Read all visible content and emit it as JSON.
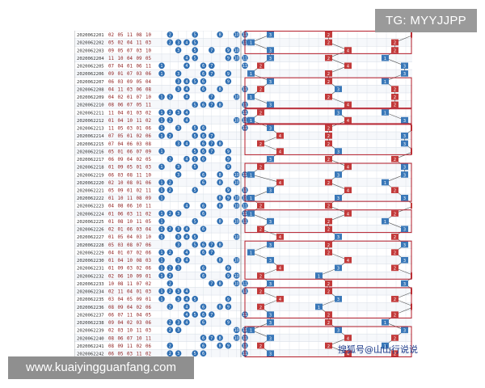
{
  "overlay": {
    "tg_label": "TG: MYYJJPP",
    "site_url": "www.kuaiyingguanfang.com",
    "watermark": "搜狐号@山山行说说"
  },
  "colors": {
    "draw_text": "#8b1a1a",
    "ball_blue": "#2f6fb3",
    "cell_red": "#c23a3a",
    "cell_blue": "#3a78b8",
    "box_line": "#b51e2a",
    "grid": "#d7dde6"
  },
  "draws": [
    {
      "issue": "2020062201",
      "nums": [
        "02",
        "05",
        "11",
        "08",
        "10"
      ]
    },
    {
      "issue": "2020062202",
      "nums": [
        "05",
        "02",
        "04",
        "11",
        "03"
      ]
    },
    {
      "issue": "2020062203",
      "nums": [
        "09",
        "05",
        "07",
        "03",
        "10"
      ]
    },
    {
      "issue": "2020062204",
      "nums": [
        "11",
        "10",
        "04",
        "09",
        "05"
      ]
    },
    {
      "issue": "2020062205",
      "nums": [
        "07",
        "04",
        "01",
        "06",
        "11"
      ]
    },
    {
      "issue": "2020062206",
      "nums": [
        "09",
        "01",
        "07",
        "03",
        "06"
      ]
    },
    {
      "issue": "2020062207",
      "nums": [
        "06",
        "03",
        "09",
        "05",
        "04"
      ]
    },
    {
      "issue": "2020062208",
      "nums": [
        "04",
        "11",
        "03",
        "06",
        "08"
      ]
    },
    {
      "issue": "2020062209",
      "nums": [
        "04",
        "02",
        "01",
        "07",
        "10"
      ]
    },
    {
      "issue": "2020062210",
      "nums": [
        "08",
        "06",
        "07",
        "05",
        "11"
      ]
    },
    {
      "issue": "2020062211",
      "nums": [
        "11",
        "04",
        "01",
        "03",
        "02"
      ]
    },
    {
      "issue": "2020062212",
      "nums": [
        "01",
        "04",
        "10",
        "11",
        "02"
      ]
    },
    {
      "issue": "2020062213",
      "nums": [
        "11",
        "05",
        "03",
        "01",
        "06"
      ]
    },
    {
      "issue": "2020062214",
      "nums": [
        "07",
        "05",
        "01",
        "02",
        "06"
      ]
    },
    {
      "issue": "2020062215",
      "nums": [
        "07",
        "04",
        "06",
        "03",
        "08"
      ]
    },
    {
      "issue": "2020062216",
      "nums": [
        "05",
        "01",
        "06",
        "07",
        "09"
      ]
    },
    {
      "issue": "2020062217",
      "nums": [
        "06",
        "09",
        "04",
        "02",
        "05"
      ]
    },
    {
      "issue": "2020062218",
      "nums": [
        "01",
        "09",
        "05",
        "01",
        "03"
      ]
    },
    {
      "issue": "2020062219",
      "nums": [
        "06",
        "03",
        "08",
        "11",
        "10"
      ]
    },
    {
      "issue": "2020062220",
      "nums": [
        "02",
        "10",
        "08",
        "01",
        "06"
      ]
    },
    {
      "issue": "2020062221",
      "nums": [
        "05",
        "09",
        "01",
        "02",
        "11"
      ]
    },
    {
      "issue": "2020062222",
      "nums": [
        "01",
        "10",
        "11",
        "08",
        "09"
      ]
    },
    {
      "issue": "2020062223",
      "nums": [
        "04",
        "08",
        "06",
        "10",
        "11"
      ]
    },
    {
      "issue": "2020062224",
      "nums": [
        "01",
        "06",
        "03",
        "11",
        "02"
      ]
    },
    {
      "issue": "2020062225",
      "nums": [
        "01",
        "08",
        "10",
        "11",
        "05"
      ]
    },
    {
      "issue": "2020062226",
      "nums": [
        "02",
        "01",
        "06",
        "03",
        "04"
      ]
    },
    {
      "issue": "2020062227",
      "nums": [
        "01",
        "05",
        "04",
        "03",
        "10"
      ]
    },
    {
      "issue": "2020062228",
      "nums": [
        "05",
        "03",
        "08",
        "07",
        "06"
      ]
    },
    {
      "issue": "2020062229",
      "nums": [
        "04",
        "01",
        "07",
        "02",
        "06"
      ]
    },
    {
      "issue": "2020062230",
      "nums": [
        "01",
        "04",
        "10",
        "08",
        "03"
      ]
    },
    {
      "issue": "2020062231",
      "nums": [
        "01",
        "09",
        "03",
        "02",
        "06"
      ]
    },
    {
      "issue": "2020062232",
      "nums": [
        "02",
        "06",
        "10",
        "09",
        "01"
      ]
    },
    {
      "issue": "2020062233",
      "nums": [
        "10",
        "08",
        "11",
        "07",
        "02"
      ]
    },
    {
      "issue": "2020062234",
      "nums": [
        "02",
        "11",
        "04",
        "01",
        "03"
      ]
    },
    {
      "issue": "2020062235",
      "nums": [
        "03",
        "04",
        "05",
        "09",
        "01"
      ]
    },
    {
      "issue": "2020062236",
      "nums": [
        "08",
        "09",
        "04",
        "02",
        "06"
      ]
    },
    {
      "issue": "2020062237",
      "nums": [
        "06",
        "07",
        "11",
        "04",
        "05"
      ]
    },
    {
      "issue": "2020062238",
      "nums": [
        "09",
        "04",
        "02",
        "03",
        "06"
      ]
    },
    {
      "issue": "2020062239",
      "nums": [
        "02",
        "03",
        "10",
        "11",
        "03"
      ]
    },
    {
      "issue": "2020062240",
      "nums": [
        "08",
        "06",
        "07",
        "10",
        "11"
      ]
    },
    {
      "issue": "2020062241",
      "nums": [
        "08",
        "09",
        "11",
        "02",
        "06"
      ]
    },
    {
      "issue": "2020062242",
      "nums": [
        "06",
        "05",
        "03",
        "11",
        "02"
      ]
    }
  ],
  "section_values": [
    [
      "3",
      "2",
      "4"
    ],
    [
      "1",
      "2",
      "2"
    ],
    [
      "3",
      "4",
      "2"
    ],
    [
      "3",
      "2",
      "1"
    ],
    [
      "2",
      "4",
      "3"
    ],
    [
      "1",
      "2",
      "3"
    ],
    [
      "3",
      "2",
      "1"
    ],
    [
      "2",
      "3",
      "2"
    ],
    [
      "1",
      "2",
      "2"
    ],
    [
      "3",
      "4",
      "2"
    ],
    [
      "2",
      "3",
      "1"
    ],
    [
      "1",
      "4",
      "3"
    ],
    [
      "3",
      "2",
      "4"
    ],
    [
      "4",
      "2",
      "3"
    ],
    [
      "2",
      "2",
      "3"
    ],
    [
      "4",
      "3",
      "4"
    ],
    [
      "3",
      "2",
      "2"
    ],
    [
      "2",
      "4",
      "3"
    ],
    [
      "1",
      "3",
      "3"
    ],
    [
      "4",
      "2",
      "1"
    ],
    [
      "3",
      "4",
      "2"
    ],
    [
      "1",
      "3",
      "3"
    ],
    [
      "2",
      "2",
      "4"
    ],
    [
      "1",
      "4",
      "2"
    ],
    [
      "3",
      "2",
      "1"
    ],
    [
      "2",
      "2",
      "3"
    ],
    [
      "4",
      "3",
      "2"
    ],
    [
      "3",
      "2",
      "3"
    ],
    [
      "1",
      "2",
      "2"
    ],
    [
      "3",
      "4",
      "3"
    ],
    [
      "4",
      "3",
      "2"
    ],
    [
      "2",
      "1",
      "4"
    ],
    [
      "3",
      "2",
      "3"
    ],
    [
      "2",
      "2",
      "4"
    ],
    [
      "4",
      "3",
      "2"
    ],
    [
      "2",
      "1",
      "4"
    ],
    [
      "3",
      "2",
      "2"
    ],
    [
      "3",
      "2",
      "1"
    ],
    [
      "1",
      "3",
      "3"
    ],
    [
      "3",
      "4",
      "2"
    ],
    [
      "2",
      "2",
      "1"
    ],
    [
      "3",
      "4",
      "2"
    ]
  ]
}
